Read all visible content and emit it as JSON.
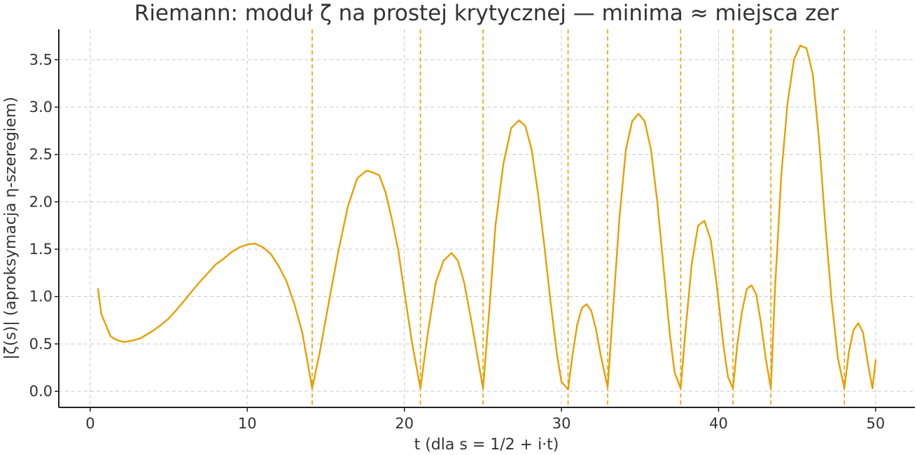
{
  "chart_data": {
    "type": "line",
    "title": "Riemann: moduł ζ na prostej krytycznej  —  minima ≈ miejsca zer",
    "xlabel": "t  (dla s = 1/2 + i·t)",
    "ylabel": "|ζ(s)|  (aproksymacja η-szeregiem)",
    "xlim": [
      -2,
      52.5
    ],
    "ylim": [
      -0.17,
      3.82
    ],
    "x_ticks": [
      0,
      10,
      20,
      30,
      40,
      50
    ],
    "x_tick_labels": [
      "0",
      "10",
      "20",
      "30",
      "40",
      "50"
    ],
    "y_ticks": [
      0.0,
      0.5,
      1.0,
      1.5,
      2.0,
      2.5,
      3.0,
      3.5
    ],
    "y_tick_labels": [
      "0.0",
      "0.5",
      "1.0",
      "1.5",
      "2.0",
      "2.5",
      "3.0",
      "3.5"
    ],
    "grid": true,
    "colors": {
      "series": "#E69F00",
      "zeros": "#E69F00",
      "grid": "#c8c8c8",
      "axis": "#222222"
    },
    "zero_markers": [
      14.13,
      21.02,
      25.01,
      30.42,
      32.94,
      37.59,
      40.92,
      43.33,
      48.01
    ],
    "series": [
      {
        "x": [
          0.5,
          0.7,
          1.0,
          1.3,
          1.6,
          1.9,
          2.2,
          2.5,
          2.8,
          3.2,
          3.6,
          4.0,
          4.5,
          5.0,
          5.5,
          6.0,
          6.5,
          7.0,
          7.5,
          8.0,
          8.5,
          9.0,
          9.5,
          10.0,
          10.5,
          11.0,
          11.5,
          12.0,
          12.5,
          13.0,
          13.5,
          14.13,
          14.6,
          15.2,
          15.8,
          16.4,
          17.0,
          17.6,
          18.0,
          18.4,
          18.8,
          19.2,
          19.6,
          20.0,
          20.5,
          21.02,
          21.5,
          22.0,
          22.5,
          23.0,
          23.4,
          23.8,
          24.2,
          24.6,
          25.01,
          25.4,
          25.8,
          26.3,
          26.8,
          27.3,
          27.7,
          28.1,
          28.5,
          28.9,
          29.3,
          29.7,
          30.0,
          30.42,
          30.7,
          31.0,
          31.3,
          31.6,
          31.9,
          32.2,
          32.5,
          32.94,
          33.3,
          33.7,
          34.1,
          34.5,
          34.9,
          35.3,
          35.7,
          36.1,
          36.5,
          36.9,
          37.2,
          37.59,
          37.9,
          38.3,
          38.7,
          39.1,
          39.5,
          39.9,
          40.3,
          40.6,
          40.92,
          41.2,
          41.5,
          41.8,
          42.1,
          42.4,
          42.7,
          43.0,
          43.33,
          43.6,
          44.0,
          44.4,
          44.8,
          45.2,
          45.6,
          46.0,
          46.4,
          46.8,
          47.2,
          47.6,
          48.01,
          48.3,
          48.6,
          48.9,
          49.2,
          49.5,
          49.8,
          50.0
        ],
        "values": [
          1.08,
          0.82,
          0.7,
          0.58,
          0.55,
          0.53,
          0.52,
          0.53,
          0.54,
          0.56,
          0.6,
          0.64,
          0.7,
          0.77,
          0.86,
          0.96,
          1.06,
          1.16,
          1.25,
          1.34,
          1.4,
          1.47,
          1.52,
          1.55,
          1.56,
          1.52,
          1.45,
          1.32,
          1.16,
          0.92,
          0.62,
          0.03,
          0.4,
          0.95,
          1.48,
          1.95,
          2.25,
          2.33,
          2.31,
          2.28,
          2.1,
          1.82,
          1.5,
          1.05,
          0.5,
          0.03,
          0.62,
          1.15,
          1.38,
          1.46,
          1.38,
          1.15,
          0.8,
          0.42,
          0.03,
          0.85,
          1.75,
          2.4,
          2.78,
          2.86,
          2.8,
          2.55,
          2.1,
          1.55,
          0.95,
          0.4,
          0.1,
          0.02,
          0.38,
          0.7,
          0.88,
          0.92,
          0.85,
          0.65,
          0.38,
          0.04,
          0.9,
          1.85,
          2.55,
          2.85,
          2.93,
          2.85,
          2.55,
          2.0,
          1.3,
          0.6,
          0.2,
          0.03,
          0.65,
          1.35,
          1.75,
          1.8,
          1.6,
          1.1,
          0.5,
          0.15,
          0.03,
          0.5,
          0.85,
          1.08,
          1.12,
          1.02,
          0.72,
          0.35,
          0.03,
          1.1,
          2.3,
          3.05,
          3.5,
          3.65,
          3.62,
          3.35,
          2.65,
          1.75,
          0.95,
          0.35,
          0.03,
          0.42,
          0.65,
          0.72,
          0.62,
          0.3,
          0.03,
          0.33
        ]
      }
    ]
  }
}
